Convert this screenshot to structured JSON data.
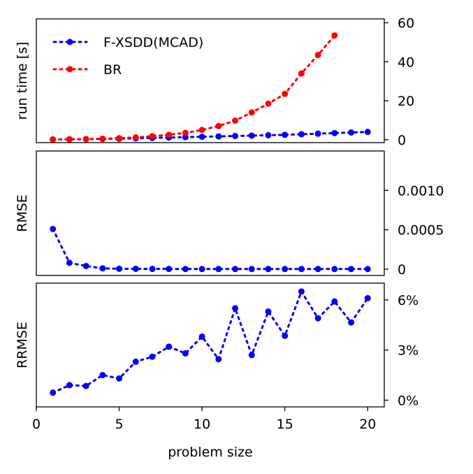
{
  "chart_data": [
    {
      "type": "line",
      "ylabel": "run time [s]",
      "ylim": [
        -1.5,
        62
      ],
      "yticks": [
        0,
        20,
        40,
        60
      ],
      "ytick_labels": [
        "0",
        "20",
        "40",
        "60"
      ],
      "y_axis_side": "right",
      "legend_placement": "top-left",
      "series": [
        {
          "name": "F-XSDD(MCAD)",
          "color": "#0000ff",
          "x": [
            1,
            2,
            3,
            4,
            5,
            6,
            7,
            8,
            9,
            10,
            11,
            12,
            13,
            14,
            15,
            16,
            17,
            18,
            19,
            20
          ],
          "values": [
            0.1,
            0.2,
            0.3,
            0.4,
            0.5,
            0.7,
            0.9,
            1.1,
            1.3,
            1.5,
            1.7,
            1.9,
            2.1,
            2.3,
            2.5,
            2.8,
            3.1,
            3.4,
            3.7,
            4.0
          ]
        },
        {
          "name": "BR",
          "color": "#ff0000",
          "x": [
            1,
            2,
            3,
            4,
            5,
            6,
            7,
            8,
            9,
            10,
            11,
            12,
            13,
            14,
            15,
            16,
            17,
            18
          ],
          "values": [
            0.1,
            0.2,
            0.3,
            0.5,
            0.8,
            1.2,
            1.8,
            2.5,
            3.5,
            5.0,
            7.0,
            9.8,
            14.0,
            18.5,
            23.5,
            34.0,
            43.5,
            53.5
          ]
        }
      ]
    },
    {
      "type": "line",
      "ylabel": "RMSE",
      "ylim": [
        -8e-05,
        0.0015
      ],
      "yticks": [
        0,
        0.0005,
        0.001
      ],
      "ytick_labels": [
        "0",
        "0.0005",
        "0.0010"
      ],
      "y_axis_side": "right",
      "series": [
        {
          "color": "#0000ff",
          "x": [
            1,
            2,
            3,
            4,
            5,
            6,
            7,
            8,
            9,
            10,
            11,
            12,
            13,
            14,
            15,
            16,
            17,
            18,
            19,
            20
          ],
          "values": [
            0.00051,
            8e-05,
            4e-05,
            1e-05,
            5e-06,
            4e-06,
            3e-06,
            3e-06,
            2e-06,
            2e-06,
            2e-06,
            2e-06,
            2e-06,
            2e-06,
            2e-06,
            2e-06,
            2e-06,
            2e-06,
            2e-06,
            1e-06
          ]
        }
      ]
    },
    {
      "type": "line",
      "ylabel": "RRMSE",
      "xlabel": "problem size",
      "ylim": [
        -0.4,
        7.0
      ],
      "yticks": [
        0,
        3,
        6
      ],
      "ytick_labels": [
        "0%",
        "3%",
        "6%"
      ],
      "y_axis_side": "right",
      "xlim": [
        0,
        21
      ],
      "xticks": [
        0,
        5,
        10,
        15,
        20
      ],
      "xtick_labels": [
        "0",
        "5",
        "10",
        "15",
        "20"
      ],
      "series": [
        {
          "color": "#0000ff",
          "x": [
            1,
            2,
            3,
            4,
            5,
            6,
            7,
            8,
            9,
            10,
            11,
            12,
            13,
            14,
            15,
            16,
            17,
            18,
            19,
            20
          ],
          "values": [
            0.45,
            0.9,
            0.85,
            1.5,
            1.3,
            2.3,
            2.6,
            3.2,
            2.8,
            3.8,
            2.45,
            5.5,
            2.7,
            5.3,
            3.85,
            6.5,
            4.9,
            5.9,
            4.65,
            6.1
          ]
        }
      ]
    }
  ]
}
